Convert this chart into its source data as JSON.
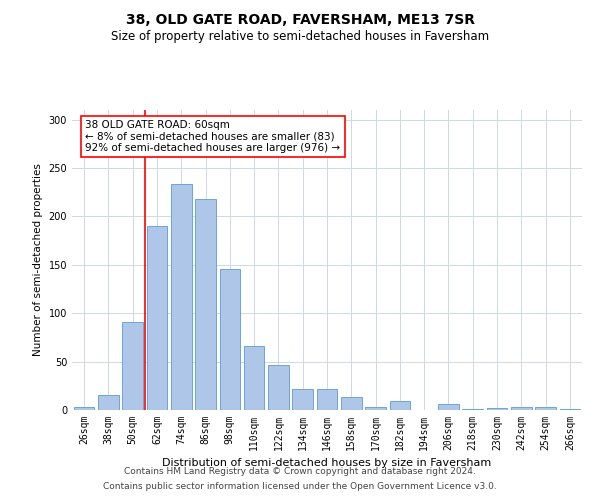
{
  "title1": "38, OLD GATE ROAD, FAVERSHAM, ME13 7SR",
  "title2": "Size of property relative to semi-detached houses in Faversham",
  "xlabel": "Distribution of semi-detached houses by size in Faversham",
  "ylabel": "Number of semi-detached properties",
  "categories": [
    "26sqm",
    "38sqm",
    "50sqm",
    "62sqm",
    "74sqm",
    "86sqm",
    "98sqm",
    "110sqm",
    "122sqm",
    "134sqm",
    "146sqm",
    "158sqm",
    "170sqm",
    "182sqm",
    "194sqm",
    "206sqm",
    "218sqm",
    "230sqm",
    "242sqm",
    "254sqm",
    "266sqm"
  ],
  "values": [
    3,
    16,
    91,
    190,
    234,
    218,
    146,
    66,
    46,
    22,
    22,
    13,
    3,
    9,
    0,
    6,
    1,
    2,
    3,
    3,
    1
  ],
  "bar_color": "#aec6e8",
  "bar_edge_color": "#5b9bd5",
  "vline_x": 2.5,
  "vline_color": "red",
  "vline_linewidth": 1.2,
  "annotation_text": "38 OLD GATE ROAD: 60sqm\n← 8% of semi-detached houses are smaller (83)\n92% of semi-detached houses are larger (976) →",
  "annotation_box_color": "white",
  "annotation_box_edge_color": "red",
  "annotation_fontsize": 7.5,
  "ylim": [
    0,
    310
  ],
  "yticks": [
    0,
    50,
    100,
    150,
    200,
    250,
    300
  ],
  "footnote1": "Contains HM Land Registry data © Crown copyright and database right 2024.",
  "footnote2": "Contains public sector information licensed under the Open Government Licence v3.0.",
  "footnote_fontsize": 6.5,
  "title1_fontsize": 10,
  "title2_fontsize": 8.5,
  "xlabel_fontsize": 8,
  "ylabel_fontsize": 7.5,
  "tick_fontsize": 7,
  "background_color": "#ffffff",
  "grid_color": "#d0d8e8"
}
